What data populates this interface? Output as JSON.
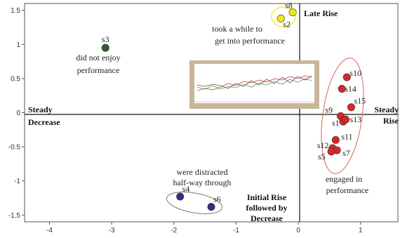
{
  "chart_data": {
    "type": "scatter",
    "xlim": [
      -4.4,
      1.6
    ],
    "ylim": [
      -1.6,
      1.6
    ],
    "x_ticks": [
      -4,
      -3,
      -2,
      -1,
      0,
      1
    ],
    "y_ticks": [
      -1.5,
      -1,
      -0.5,
      0,
      0.5,
      1,
      1.5
    ],
    "x_tick_labels": [
      "-4",
      "-3",
      "-2",
      "-1",
      "0",
      "1"
    ],
    "y_tick_labels": [
      "-1.5",
      "-1",
      "-0.5",
      "0",
      "0.5",
      "1",
      "1.5"
    ],
    "grid": false,
    "colors": {
      "green": "#2e5e2e",
      "yellow": "#f4e617",
      "red": "#d9262b",
      "purple": "#3a2a80",
      "inset_frame": "#c8b69a"
    },
    "points": [
      {
        "label": "s3",
        "x": -3.1,
        "y": 0.95,
        "color": "green"
      },
      {
        "label": "s8",
        "x": -0.09,
        "y": 1.47,
        "color": "yellow"
      },
      {
        "label": "s2",
        "x": -0.28,
        "y": 1.38,
        "color": "yellow"
      },
      {
        "label": "s10",
        "x": 0.78,
        "y": 0.52,
        "color": "red"
      },
      {
        "label": "s14",
        "x": 0.7,
        "y": 0.35,
        "color": "red"
      },
      {
        "label": "s15",
        "x": 0.85,
        "y": 0.08,
        "color": "red"
      },
      {
        "label": "s9",
        "x": 0.68,
        "y": -0.05,
        "color": "red"
      },
      {
        "label": "s1",
        "x": 0.72,
        "y": -0.13,
        "color": "red"
      },
      {
        "label": "s13",
        "x": 0.76,
        "y": -0.1,
        "color": "red"
      },
      {
        "label": "s11",
        "x": 0.6,
        "y": -0.4,
        "color": "red"
      },
      {
        "label": "s12",
        "x": 0.55,
        "y": -0.52,
        "color": "red"
      },
      {
        "label": "s7",
        "x": 0.62,
        "y": -0.55,
        "color": "red"
      },
      {
        "label": "s5",
        "x": 0.53,
        "y": -0.57,
        "color": "red"
      },
      {
        "label": "s4",
        "x": -1.9,
        "y": -1.23,
        "color": "purple"
      },
      {
        "label": "s6",
        "x": -1.4,
        "y": -1.38,
        "color": "purple"
      }
    ],
    "quadrant_labels": {
      "top_right": "Late Rise",
      "left": [
        "Steady",
        "Decrease"
      ],
      "right": [
        "Steady",
        "Rise"
      ],
      "bottom_middle": [
        "Initial Rise",
        "followed by",
        "Decrease"
      ]
    },
    "annotations": {
      "s3_note": [
        "did not enjoy",
        "performance"
      ],
      "yellow_note": [
        "took a while to",
        "get into performance"
      ],
      "red_note": [
        "engaged in",
        "performance"
      ],
      "purple_note": [
        "were distracted",
        "half-way through"
      ]
    }
  }
}
